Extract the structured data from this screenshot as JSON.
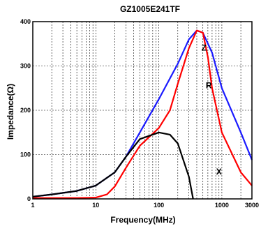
{
  "chart_data": {
    "type": "line",
    "title": "GZ1005E241TF",
    "xlabel": "Frequency(MHz)",
    "ylabel": "Impedance(Ω)",
    "x_scale": "log",
    "xlim": [
      1,
      3000
    ],
    "ylim": [
      0,
      400
    ],
    "x_ticks": [
      {
        "value": 1,
        "label": "1"
      },
      {
        "value": 10,
        "label": "10"
      },
      {
        "value": 100,
        "label": "100"
      },
      {
        "value": 1000,
        "label": "1000"
      },
      {
        "value": 3000,
        "label": "3000"
      }
    ],
    "y_ticks": [
      {
        "value": 0,
        "label": "0"
      },
      {
        "value": 100,
        "label": "100"
      },
      {
        "value": 200,
        "label": "200"
      },
      {
        "value": 300,
        "label": "300"
      },
      {
        "value": 400,
        "label": "400"
      }
    ],
    "grid": true,
    "series": [
      {
        "name": "Z",
        "color": "#1a1aff",
        "label_at": {
          "x": 520,
          "y": 335
        },
        "points": [
          [
            1,
            5
          ],
          [
            2,
            10
          ],
          [
            5,
            18
          ],
          [
            10,
            30
          ],
          [
            20,
            60
          ],
          [
            30,
            95
          ],
          [
            50,
            150
          ],
          [
            100,
            225
          ],
          [
            200,
            305
          ],
          [
            300,
            360
          ],
          [
            400,
            380
          ],
          [
            500,
            375
          ],
          [
            700,
            330
          ],
          [
            1000,
            250
          ],
          [
            2000,
            150
          ],
          [
            3000,
            88
          ]
        ]
      },
      {
        "name": "R",
        "color": "#ff0000",
        "label_at": {
          "x": 620,
          "y": 250
        },
        "points": [
          [
            1,
            2
          ],
          [
            5,
            2
          ],
          [
            10,
            3
          ],
          [
            15,
            10
          ],
          [
            20,
            28
          ],
          [
            30,
            70
          ],
          [
            50,
            120
          ],
          [
            100,
            160
          ],
          [
            150,
            200
          ],
          [
            200,
            260
          ],
          [
            300,
            340
          ],
          [
            400,
            380
          ],
          [
            500,
            375
          ],
          [
            600,
            320
          ],
          [
            700,
            250
          ],
          [
            1000,
            150
          ],
          [
            2000,
            60
          ],
          [
            3000,
            30
          ]
        ]
      },
      {
        "name": "X",
        "color": "#000000",
        "label_at": {
          "x": 900,
          "y": 55
        },
        "points": [
          [
            1,
            5
          ],
          [
            2,
            10
          ],
          [
            5,
            18
          ],
          [
            10,
            30
          ],
          [
            20,
            60
          ],
          [
            30,
            95
          ],
          [
            50,
            135
          ],
          [
            100,
            150
          ],
          [
            150,
            145
          ],
          [
            200,
            125
          ],
          [
            300,
            50
          ],
          [
            350,
            0
          ]
        ]
      }
    ]
  }
}
